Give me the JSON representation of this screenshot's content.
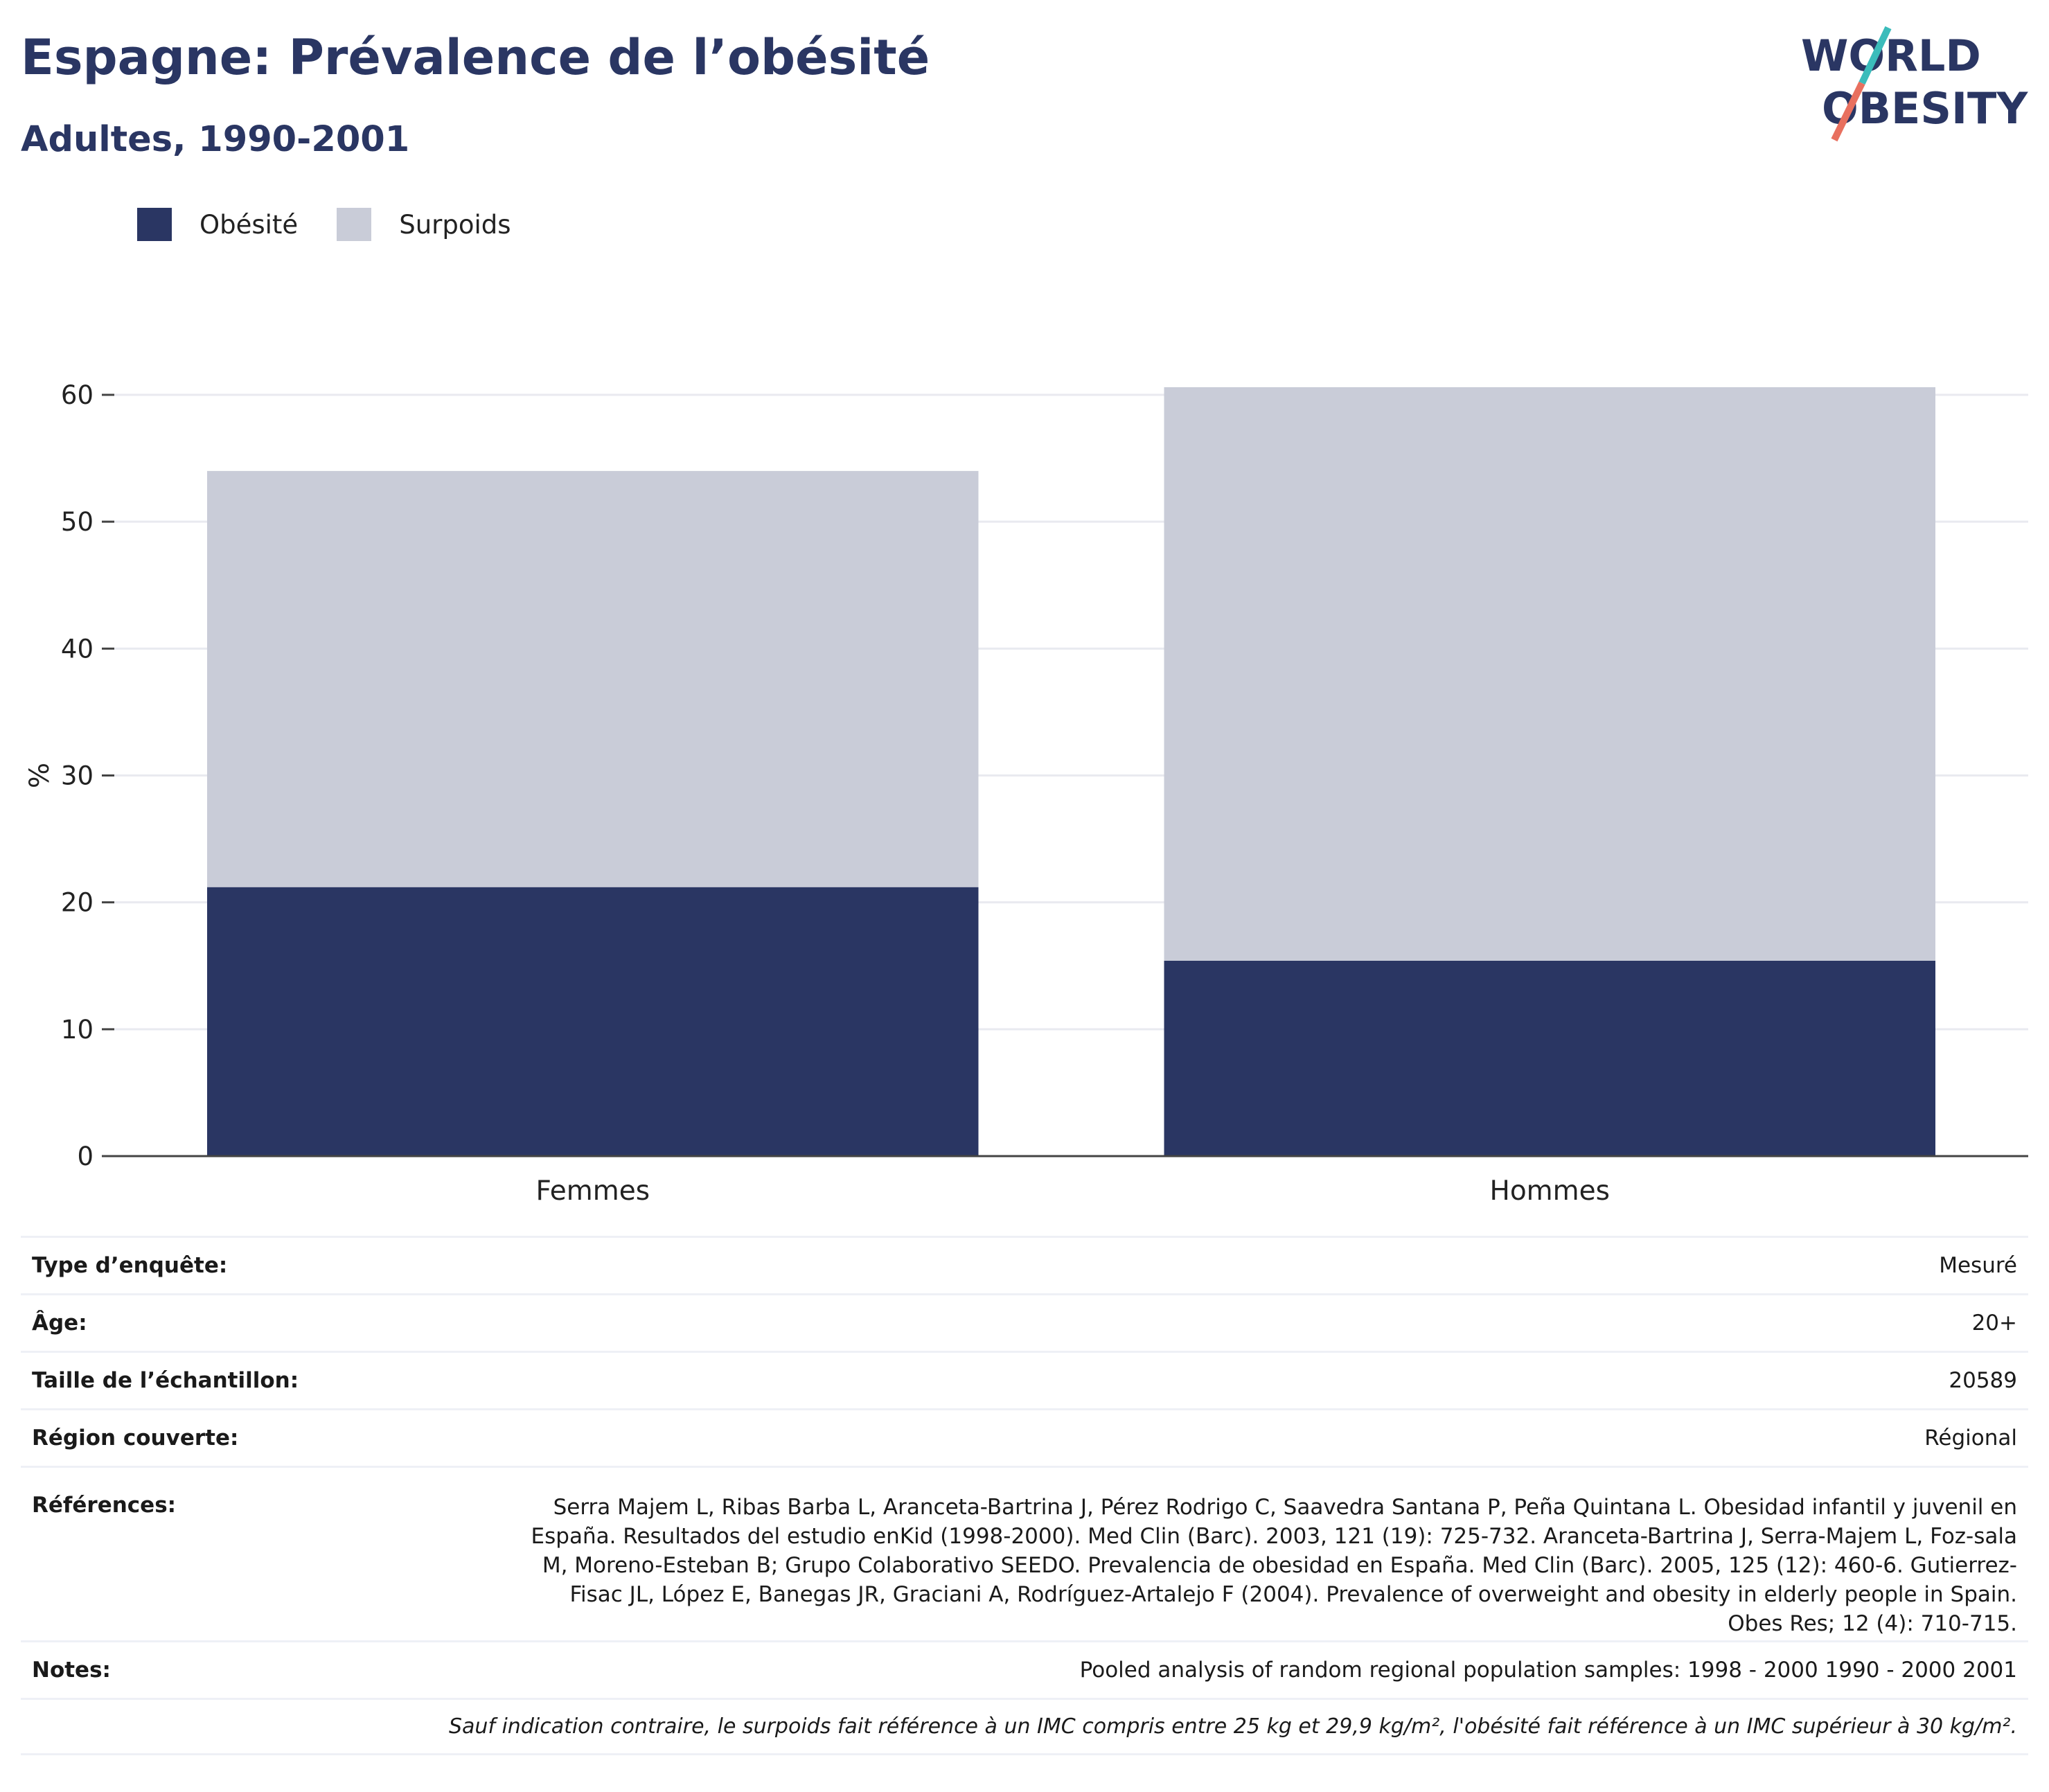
{
  "header": {
    "title": "Espagne: Prévalence de l’obésité",
    "subtitle": "Adultes, 1990-2001"
  },
  "logo": {
    "line1": "WORLD",
    "line2": "OBESITY",
    "name": "world-obesity-logo"
  },
  "colors": {
    "obesite": "#2a3663",
    "surpoids": "#c9ccd8",
    "title": "#2a3663",
    "logo_teal": "#3bbcbb",
    "logo_coral": "#e8705f"
  },
  "chart_data": {
    "type": "bar",
    "stacked": true,
    "categories": [
      "Femmes",
      "Hommes"
    ],
    "series": [
      {
        "name": "Obésité",
        "values": [
          21.2,
          15.4
        ]
      },
      {
        "name": "Surpoids",
        "values": [
          32.8,
          45.2
        ]
      }
    ],
    "ylabel": "%",
    "xlabel": "",
    "ylim": [
      0,
      63
    ],
    "yticks": [
      0,
      10,
      20,
      30,
      40,
      50,
      60
    ],
    "grid": true,
    "legend_position": "top-left"
  },
  "info": {
    "survey_type": {
      "label": "Type d’enquête:",
      "value": "Mesuré"
    },
    "age": {
      "label": "Âge:",
      "value": "20+"
    },
    "sample_size": {
      "label": "Taille de l’échantillon:",
      "value": "20589"
    },
    "region": {
      "label": "Région couverte:",
      "value": "Régional"
    },
    "references": {
      "label": "Références:",
      "value": "Serra Majem L, Ribas Barba L, Aranceta-Bartrina J, Pérez Rodrigo C, Saavedra Santana P, Peña Quintana L. Obesidad infantil y juvenil en España. Resultados del estudio enKid (1998-2000). Med Clin (Barc). 2003, 121 (19): 725-732. Aranceta-Bartrina J, Serra-Majem L, Foz-sala M, Moreno-Esteban B; Grupo Colaborativo SEEDO. Prevalencia de obesidad en España. Med Clin (Barc). 2005, 125 (12): 460-6. Gutierrez-Fisac JL, López E, Banegas JR, Graciani A, Rodríguez-Artalejo F (2004). Prevalence of overweight and obesity in elderly people in Spain. Obes Res; 12 (4): 710-715."
    },
    "notes": {
      "label": "Notes:",
      "value": "Pooled analysis of random regional population samples: 1998 - 2000 1990 - 2000 2001"
    },
    "footnote": "Sauf indication contraire, le surpoids fait référence à un IMC compris entre 25 kg et 29,9 kg/m², l'obésité fait référence à un IMC supérieur à 30 kg/m²."
  }
}
